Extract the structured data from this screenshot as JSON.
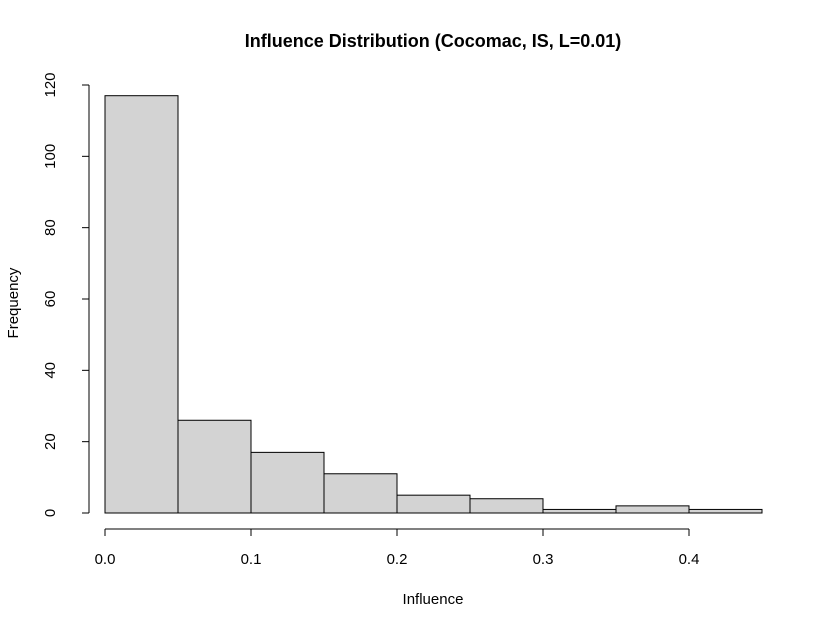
{
  "chart_data": {
    "type": "bar",
    "title": "Influence Distribution (Cocomac, IS, L=0.01)",
    "xlabel": "Influence",
    "ylabel": "Frequency",
    "bins": [
      {
        "x0": 0.0,
        "x1": 0.05,
        "count": 117
      },
      {
        "x0": 0.05,
        "x1": 0.1,
        "count": 26
      },
      {
        "x0": 0.1,
        "x1": 0.15,
        "count": 17
      },
      {
        "x0": 0.15,
        "x1": 0.2,
        "count": 11
      },
      {
        "x0": 0.2,
        "x1": 0.25,
        "count": 5
      },
      {
        "x0": 0.25,
        "x1": 0.3,
        "count": 4
      },
      {
        "x0": 0.3,
        "x1": 0.35,
        "count": 1
      },
      {
        "x0": 0.35,
        "x1": 0.4,
        "count": 2
      },
      {
        "x0": 0.4,
        "x1": 0.45,
        "count": 1
      }
    ],
    "xticks": [
      0.0,
      0.1,
      0.2,
      0.3,
      0.4
    ],
    "xtick_labels": [
      "0.0",
      "0.1",
      "0.2",
      "0.3",
      "0.4"
    ],
    "yticks": [
      0,
      20,
      40,
      60,
      80,
      100,
      120
    ],
    "ytick_labels": [
      "0",
      "20",
      "40",
      "60",
      "80",
      "100",
      "120"
    ],
    "xlim": [
      0.0,
      0.45
    ],
    "ylim": [
      0,
      120
    ],
    "grid": false,
    "colors": {
      "bar_fill": "#d3d3d3",
      "bar_stroke": "#000000"
    }
  }
}
